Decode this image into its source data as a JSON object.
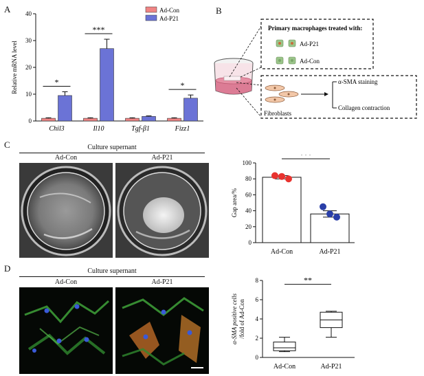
{
  "panels": {
    "a": "A",
    "b": "B",
    "c": "C",
    "d": "D"
  },
  "panel_a": {
    "ylabel": "Relative mRNA level",
    "yticks": [
      "0",
      "10",
      "20",
      "30",
      "40"
    ],
    "genes": [
      "Chil3",
      "Il10",
      "Tgf-β1",
      "Fizz1"
    ],
    "legend": [
      "Ad-Con",
      "Ad-P21"
    ],
    "sig": [
      "*",
      "***",
      "*"
    ]
  },
  "panel_b": {
    "box_title": "Primary macrophages treated with:",
    "ad_p21": "Ad-P21",
    "ad_con": "Ad-Con",
    "fibroblasts": "Fibroblasts",
    "sma": "α-SMA staining",
    "collagen": "Collagen contraction"
  },
  "panel_c": {
    "header": "Culture supernant",
    "col_con": "Ad-Con",
    "col_p21": "Ad-P21",
    "ylabel": "Gap area/%",
    "yticks": [
      "0",
      "20",
      "40",
      "60",
      "80",
      "100"
    ],
    "xlabels": [
      "Ad-Con",
      "Ad-P21"
    ],
    "sig": "***"
  },
  "panel_d": {
    "header": "Culture supernant",
    "col_con": "Ad-Con",
    "col_p21": "Ad-P21",
    "ylabel1": "α-SMA positive cells",
    "ylabel2": "/fold of Ad-Con",
    "yticks": [
      "0",
      "2",
      "4",
      "6",
      "8"
    ],
    "xlabels": [
      "Ad-Con",
      "Ad-P21"
    ],
    "sig": "**"
  },
  "colors": {
    "con": "#f08484",
    "p21": "#6b73d6",
    "con_dot": "#e8332f",
    "p21_dot": "#2a3fa8"
  },
  "chart_data": [
    {
      "type": "bar",
      "ylabel": "Relative mRNA level",
      "ylim": [
        0,
        40
      ],
      "categories": [
        "Chil3",
        "Il10",
        "Tgf-β1",
        "Fizz1"
      ],
      "series": [
        {
          "name": "Ad-Con",
          "values": [
            1,
            1,
            1,
            1
          ],
          "errors": [
            0.2,
            0.2,
            0.2,
            0.2
          ]
        },
        {
          "name": "Ad-P21",
          "values": [
            9.5,
            27,
            1.7,
            8.5
          ],
          "errors": [
            1.4,
            3.5,
            0.2,
            1.2
          ]
        }
      ],
      "legend": "top-right"
    },
    {
      "type": "bar",
      "ylabel": "Gap area/%",
      "ylim": [
        0,
        100
      ],
      "categories": [
        "Ad-Con",
        "Ad-P21"
      ],
      "values": [
        82,
        36
      ],
      "errors": [
        2,
        4
      ],
      "points": [
        [
          84,
          80,
          83
        ],
        [
          45,
          32,
          36
        ]
      ]
    },
    {
      "type": "box",
      "ylabel": "α-SMA positive cells/fold of Ad-Con",
      "ylim": [
        0,
        8
      ],
      "categories": [
        "Ad-Con",
        "Ad-P21"
      ],
      "box": [
        {
          "min": 0.6,
          "q1": 0.7,
          "median": 1.0,
          "q3": 1.6,
          "max": 2.1
        },
        {
          "min": 2.1,
          "q1": 3.1,
          "median": 3.9,
          "q3": 4.7,
          "max": 4.8
        }
      ]
    }
  ]
}
